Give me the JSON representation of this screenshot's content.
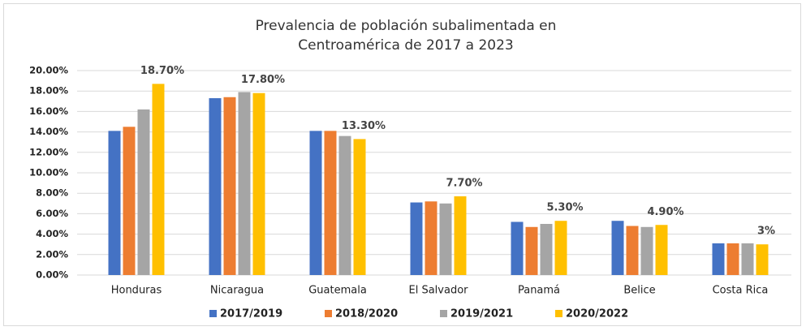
{
  "chart_data": {
    "type": "bar",
    "title": "Prevalencia de población subalimentada en Centroamérica de 2017 a 2023",
    "categories": [
      "Honduras",
      "Nicaragua",
      "Guatemala",
      "El Salvador",
      "Panamá",
      "Belice",
      "Costa Rica"
    ],
    "series": [
      {
        "name": "2017/2019",
        "color": "#4472c4",
        "values": [
          14.1,
          17.3,
          14.1,
          7.1,
          5.2,
          5.3,
          3.1
        ]
      },
      {
        "name": "2018/2020",
        "color": "#ed7d31",
        "values": [
          14.5,
          17.4,
          14.1,
          7.2,
          4.7,
          4.8,
          3.1
        ]
      },
      {
        "name": "2019/2021",
        "color": "#a5a5a5",
        "values": [
          16.2,
          17.9,
          13.6,
          7.0,
          5.0,
          4.7,
          3.1
        ]
      },
      {
        "name": "2020/2022",
        "color": "#ffc000",
        "values": [
          18.7,
          17.8,
          13.3,
          7.7,
          5.3,
          4.9,
          3
        ],
        "value_labels": [
          "18.70%",
          "17.80%",
          "13.30%",
          "7.70%",
          "5.30%",
          "4.90%",
          "3%"
        ]
      }
    ],
    "ylim": [
      0,
      20
    ],
    "yticks": [
      {
        "value": 0,
        "label": "0.00%"
      },
      {
        "value": 2,
        "label": "2.00%"
      },
      {
        "value": 4,
        "label": "4.00%"
      },
      {
        "value": 6,
        "label": "6.00%"
      },
      {
        "value": 8,
        "label": "8.00%"
      },
      {
        "value": 10,
        "label": "10.00%"
      },
      {
        "value": 12,
        "label": "12.00%"
      },
      {
        "value": 14,
        "label": "14.00%"
      },
      {
        "value": 16,
        "label": "16.00%"
      },
      {
        "value": 18,
        "label": "18.00%"
      },
      {
        "value": 20,
        "label": "20.00%"
      }
    ],
    "grid": true,
    "legend": "bottom"
  }
}
